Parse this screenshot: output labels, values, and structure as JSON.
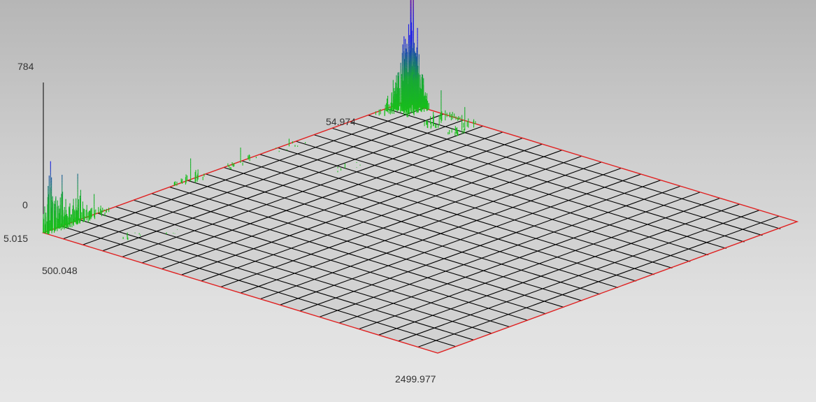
{
  "chart_data": {
    "type": "3d-spectrum",
    "title": "",
    "axes": {
      "z": {
        "max_label": "784",
        "min_label": "0",
        "range": [
          0,
          784
        ]
      },
      "y": {
        "min_label": "5.015",
        "max_label": "54.974",
        "range": [
          5.015,
          54.974
        ]
      },
      "x": {
        "min_label": "500.048",
        "max_label": "2499.977",
        "range": [
          500.048,
          2499.977
        ]
      }
    },
    "grid": true,
    "floor_divisions": 20,
    "colors": {
      "low": "#18c018",
      "mid": "#1a1ae6",
      "high": "#e0103a",
      "floor_border": "#e02020",
      "grid_line": "#000000",
      "floor_fill": "#d2d2d2"
    },
    "peaks": [
      {
        "x": 550,
        "y": 54.5,
        "height": 784
      },
      {
        "x": 585,
        "y": 54.5,
        "height": 420
      },
      {
        "x": 600,
        "y": 54.0,
        "height": 330
      },
      {
        "x": 535,
        "y": 52.5,
        "height": 160
      },
      {
        "x": 760,
        "y": 53.0,
        "height": 170
      },
      {
        "x": 880,
        "y": 53.0,
        "height": 120
      },
      {
        "x": 520,
        "y": 38.5,
        "height": 40
      },
      {
        "x": 840,
        "y": 37.5,
        "height": 25
      },
      {
        "x": 780,
        "y": 9.0,
        "height": 35
      },
      {
        "x": 850,
        "y": 12.5,
        "height": 10
      },
      {
        "x": 500.5,
        "y": 6.0,
        "height": 360
      },
      {
        "x": 504,
        "y": 7.5,
        "height": 270
      },
      {
        "x": 510,
        "y": 9.5,
        "height": 250
      },
      {
        "x": 520,
        "y": 11.5,
        "height": 120
      },
      {
        "x": 515,
        "y": 25.0,
        "height": 120
      },
      {
        "x": 512,
        "y": 32.0,
        "height": 80
      }
    ]
  }
}
